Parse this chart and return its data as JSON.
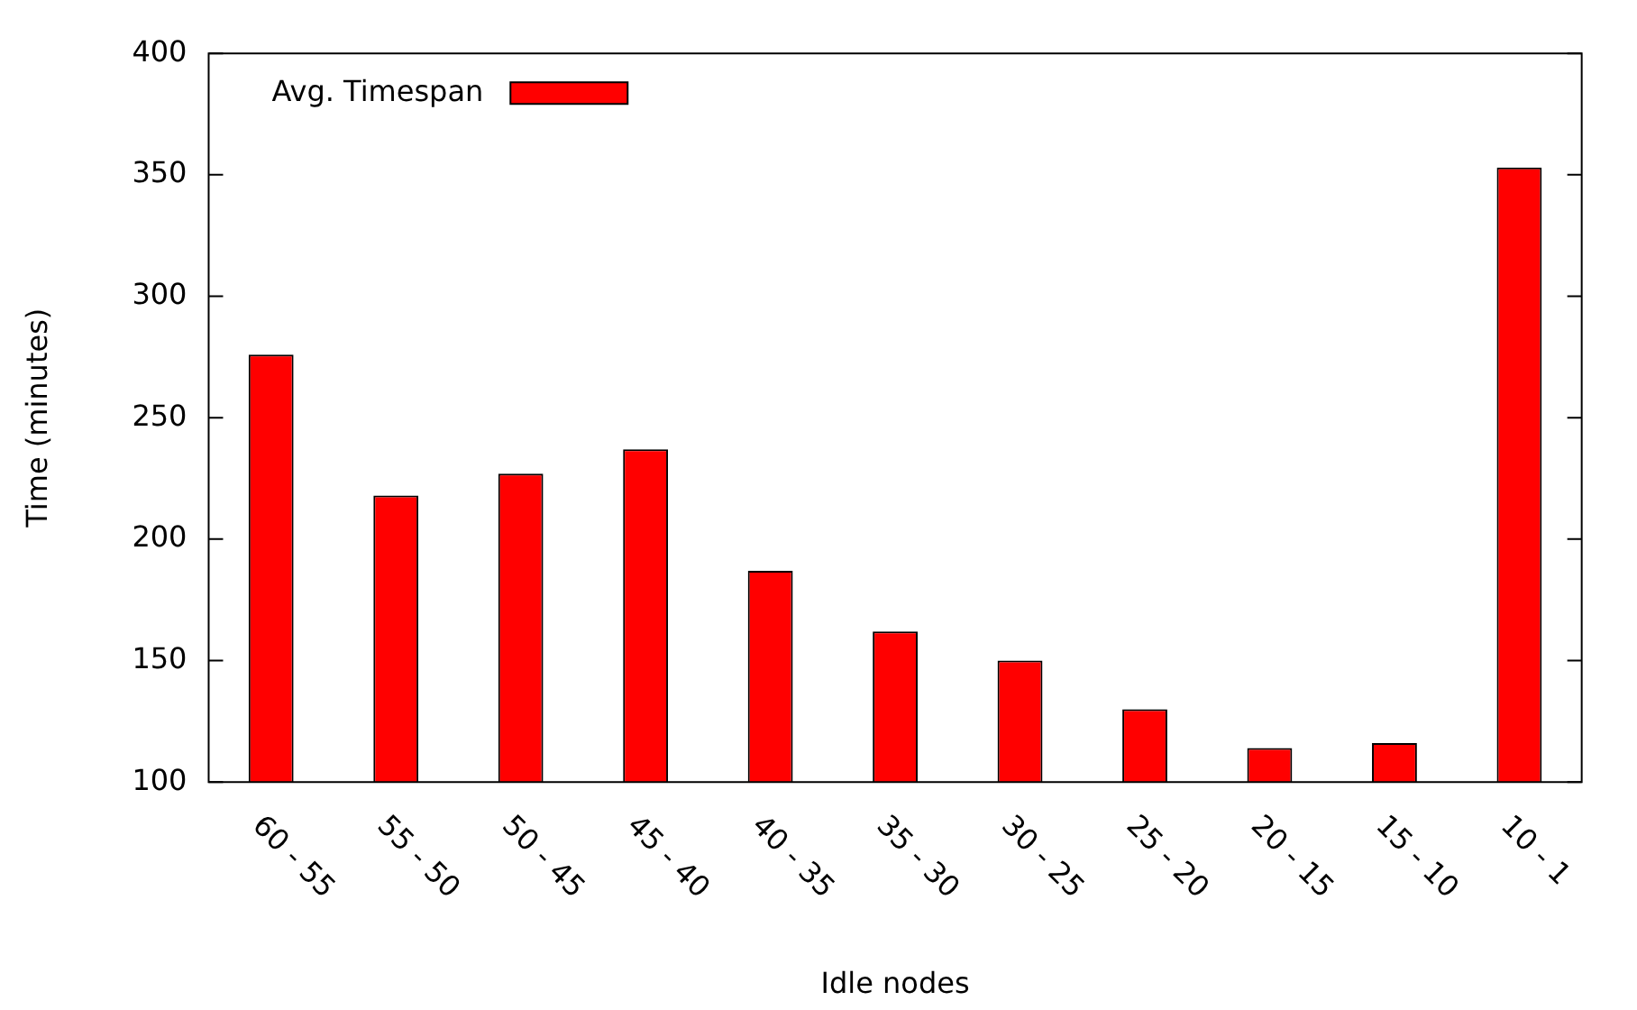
{
  "chart_data": {
    "type": "bar",
    "xlabel": "Idle nodes",
    "ylabel": "Time (minutes)",
    "categories": [
      "60 - 55",
      "55 - 50",
      "50 - 45",
      "45 - 40",
      "40 - 35",
      "35 - 30",
      "30 - 25",
      "25 - 20",
      "20 - 15",
      "15 - 10",
      "10 - 1"
    ],
    "series": [
      {
        "name": "Avg. Timespan",
        "color": "#ff0000",
        "values": [
          276,
          218,
          227,
          237,
          187,
          162,
          150,
          130,
          114,
          116,
          353
        ]
      }
    ],
    "ylim": [
      100,
      400
    ],
    "yticks": [
      100,
      150,
      200,
      250,
      300,
      350,
      400
    ],
    "grid": false,
    "legend": "top left"
  }
}
